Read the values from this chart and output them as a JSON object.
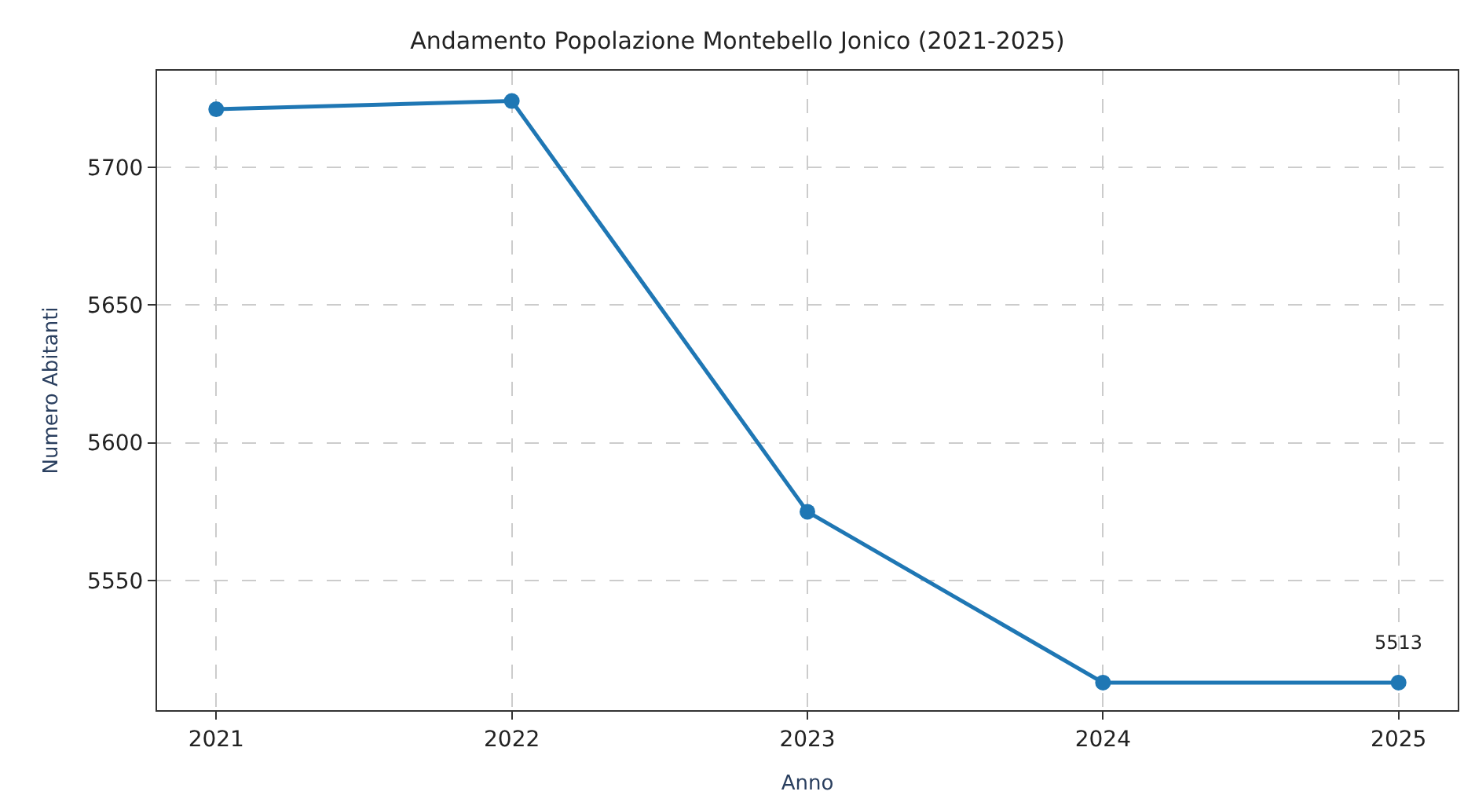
{
  "chart_data": {
    "type": "line",
    "title": "Andamento Popolazione Montebello Jonico (2021-2025)",
    "xlabel": "Anno",
    "ylabel": "Numero Abitanti",
    "x": [
      2021,
      2022,
      2023,
      2024,
      2025
    ],
    "series": [
      {
        "color": "#1f77b4",
        "values": [
          5721,
          5724,
          5575,
          5513,
          5513
        ]
      }
    ],
    "xlim": [
      2020.8,
      2025.2
    ],
    "xticks": [
      2021,
      2022,
      2023,
      2024,
      2025
    ],
    "ylim": [
      5503,
      5735
    ],
    "yticks": [
      5550,
      5600,
      5650,
      5700
    ],
    "annotations": [
      {
        "text": "5513",
        "x": 2025,
        "y": 5513
      }
    ],
    "grid": true,
    "marker": "circle",
    "line_style": "solid"
  }
}
